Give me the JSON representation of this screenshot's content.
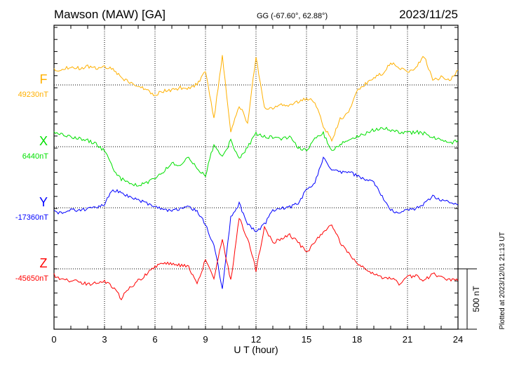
{
  "chart_data": {
    "type": "line",
    "title": "Mawson (MAW)  [GA]",
    "subtitle": "GG (-67.60°,  62.88°)",
    "date": "2023/11/25",
    "xlabel": "U T (hour)",
    "xlim": [
      0,
      24
    ],
    "xticks": [
      "0",
      "3",
      "6",
      "9",
      "12",
      "15",
      "18",
      "21",
      "24"
    ],
    "scale_label": "500 nT",
    "scale_nT": 500,
    "plotted_note": "Plotted at 2023/12/01 21:13 UT",
    "grid": true,
    "x": [
      0,
      0.5,
      1,
      1.5,
      2,
      2.5,
      3,
      3.5,
      4,
      4.5,
      5,
      5.5,
      6,
      6.5,
      7,
      7.5,
      8,
      8.5,
      9,
      9.5,
      10,
      10.5,
      11,
      11.5,
      12,
      12.5,
      13,
      13.5,
      14,
      14.5,
      15,
      15.5,
      16,
      16.5,
      17,
      17.5,
      18,
      18.5,
      19,
      19.5,
      20,
      20.5,
      21,
      21.5,
      22,
      22.5,
      23,
      23.5,
      24
    ],
    "series": [
      {
        "name": "F",
        "baseline_label": "49230nT",
        "color": "#ffb000",
        "values": [
          122,
          133,
          151,
          139,
          151,
          139,
          151,
          134,
          64,
          17,
          -6,
          -41,
          -81,
          -52,
          -41,
          -23,
          -23,
          6,
          122,
          -284,
          238,
          -400,
          -168,
          -313,
          238,
          -197,
          -197,
          -168,
          -168,
          -139,
          -110,
          -139,
          -342,
          -458,
          -284,
          -226,
          -52,
          6,
          64,
          93,
          180,
          151,
          93,
          151,
          238,
          35,
          64,
          35,
          122
        ]
      },
      {
        "name": "X",
        "baseline_label": "6440nT",
        "color": "#00e000",
        "values": [
          110,
          99,
          81,
          70,
          52,
          23,
          -35,
          -180,
          -267,
          -307,
          -325,
          -296,
          -267,
          -209,
          -133,
          -151,
          -93,
          -180,
          -238,
          23,
          -93,
          52,
          -93,
          -6,
          110,
          81,
          81,
          64,
          81,
          -6,
          -35,
          81,
          110,
          -35,
          23,
          52,
          81,
          110,
          139,
          157,
          139,
          122,
          110,
          122,
          110,
          81,
          52,
          23,
          52
        ]
      },
      {
        "name": "Y",
        "baseline_label": "-17360nT",
        "color": "#0000ff",
        "values": [
          -35,
          -41,
          -23,
          -17,
          -12,
          0,
          35,
          151,
          122,
          93,
          64,
          35,
          6,
          -12,
          -23,
          -6,
          6,
          -23,
          -139,
          -313,
          -661,
          -81,
          35,
          -139,
          -197,
          -139,
          -23,
          -6,
          6,
          35,
          151,
          209,
          412,
          325,
          296,
          296,
          267,
          238,
          209,
          93,
          -23,
          -35,
          -23,
          -6,
          35,
          93,
          64,
          46,
          23
        ]
      },
      {
        "name": "Z",
        "baseline_label": "-45650nT",
        "color": "#ff0000",
        "values": [
          -52,
          -87,
          -99,
          -110,
          -128,
          -116,
          -99,
          -157,
          -244,
          -157,
          -99,
          -41,
          17,
          41,
          46,
          29,
          17,
          -128,
          75,
          -70,
          249,
          -99,
          423,
          249,
          -12,
          336,
          220,
          249,
          278,
          220,
          133,
          220,
          307,
          365,
          220,
          133,
          46,
          6,
          -41,
          -70,
          -70,
          -128,
          -70,
          -52,
          -99,
          -41,
          -70,
          -87,
          -99
        ]
      }
    ]
  }
}
